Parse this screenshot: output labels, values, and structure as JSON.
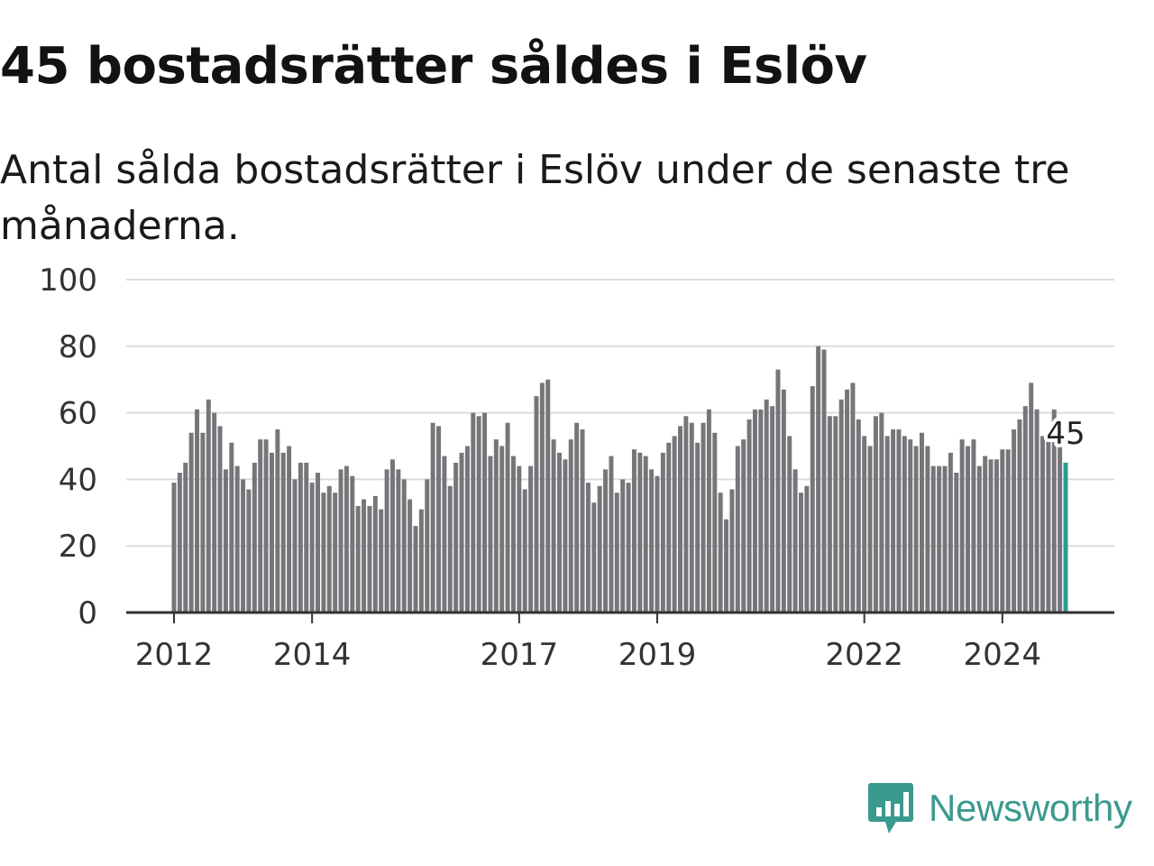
{
  "title": "45 bostadsrätter såldes i Eslöv",
  "subtitle": "Antal sålda bostadsrätter i Eslöv under de senaste tre månaderna.",
  "brand": {
    "name": "Newsworthy",
    "icon": "newsworthy-logo-icon",
    "color": "#3a9a8f"
  },
  "chart_data": {
    "type": "bar",
    "x_unit": "month",
    "start": "2012-01",
    "x_ticks": [
      "2012",
      "2014",
      "2017",
      "2019",
      "2022",
      "2024"
    ],
    "y_ticks": [
      0,
      20,
      40,
      60,
      80,
      100
    ],
    "ylim": [
      0,
      100
    ],
    "grid": true,
    "highlight": {
      "label": "45",
      "color": "#2a9d8f"
    },
    "bar_color": "#76767a",
    "values": [
      39,
      42,
      45,
      54,
      61,
      54,
      64,
      60,
      56,
      43,
      51,
      44,
      40,
      37,
      45,
      52,
      52,
      48,
      55,
      48,
      50,
      40,
      45,
      45,
      39,
      42,
      36,
      38,
      36,
      43,
      44,
      41,
      32,
      34,
      32,
      35,
      31,
      43,
      46,
      43,
      40,
      34,
      26,
      31,
      40,
      57,
      56,
      47,
      38,
      45,
      48,
      50,
      60,
      59,
      60,
      47,
      52,
      50,
      57,
      47,
      44,
      37,
      44,
      65,
      69,
      70,
      52,
      48,
      46,
      52,
      57,
      55,
      39,
      33,
      38,
      43,
      47,
      36,
      40,
      39,
      49,
      48,
      47,
      43,
      41,
      48,
      51,
      53,
      56,
      59,
      57,
      51,
      57,
      61,
      54,
      36,
      28,
      37,
      50,
      52,
      58,
      61,
      61,
      64,
      62,
      73,
      67,
      53,
      43,
      36,
      38,
      68,
      80,
      79,
      59,
      59,
      64,
      67,
      69,
      58,
      53,
      50,
      59,
      60,
      53,
      55,
      55,
      53,
      52,
      50,
      54,
      50,
      44,
      44,
      44,
      48,
      42,
      52,
      50,
      52,
      44,
      47,
      46,
      46,
      49,
      49,
      55,
      58,
      62,
      69,
      61,
      53,
      53,
      61,
      53,
      45
    ]
  }
}
